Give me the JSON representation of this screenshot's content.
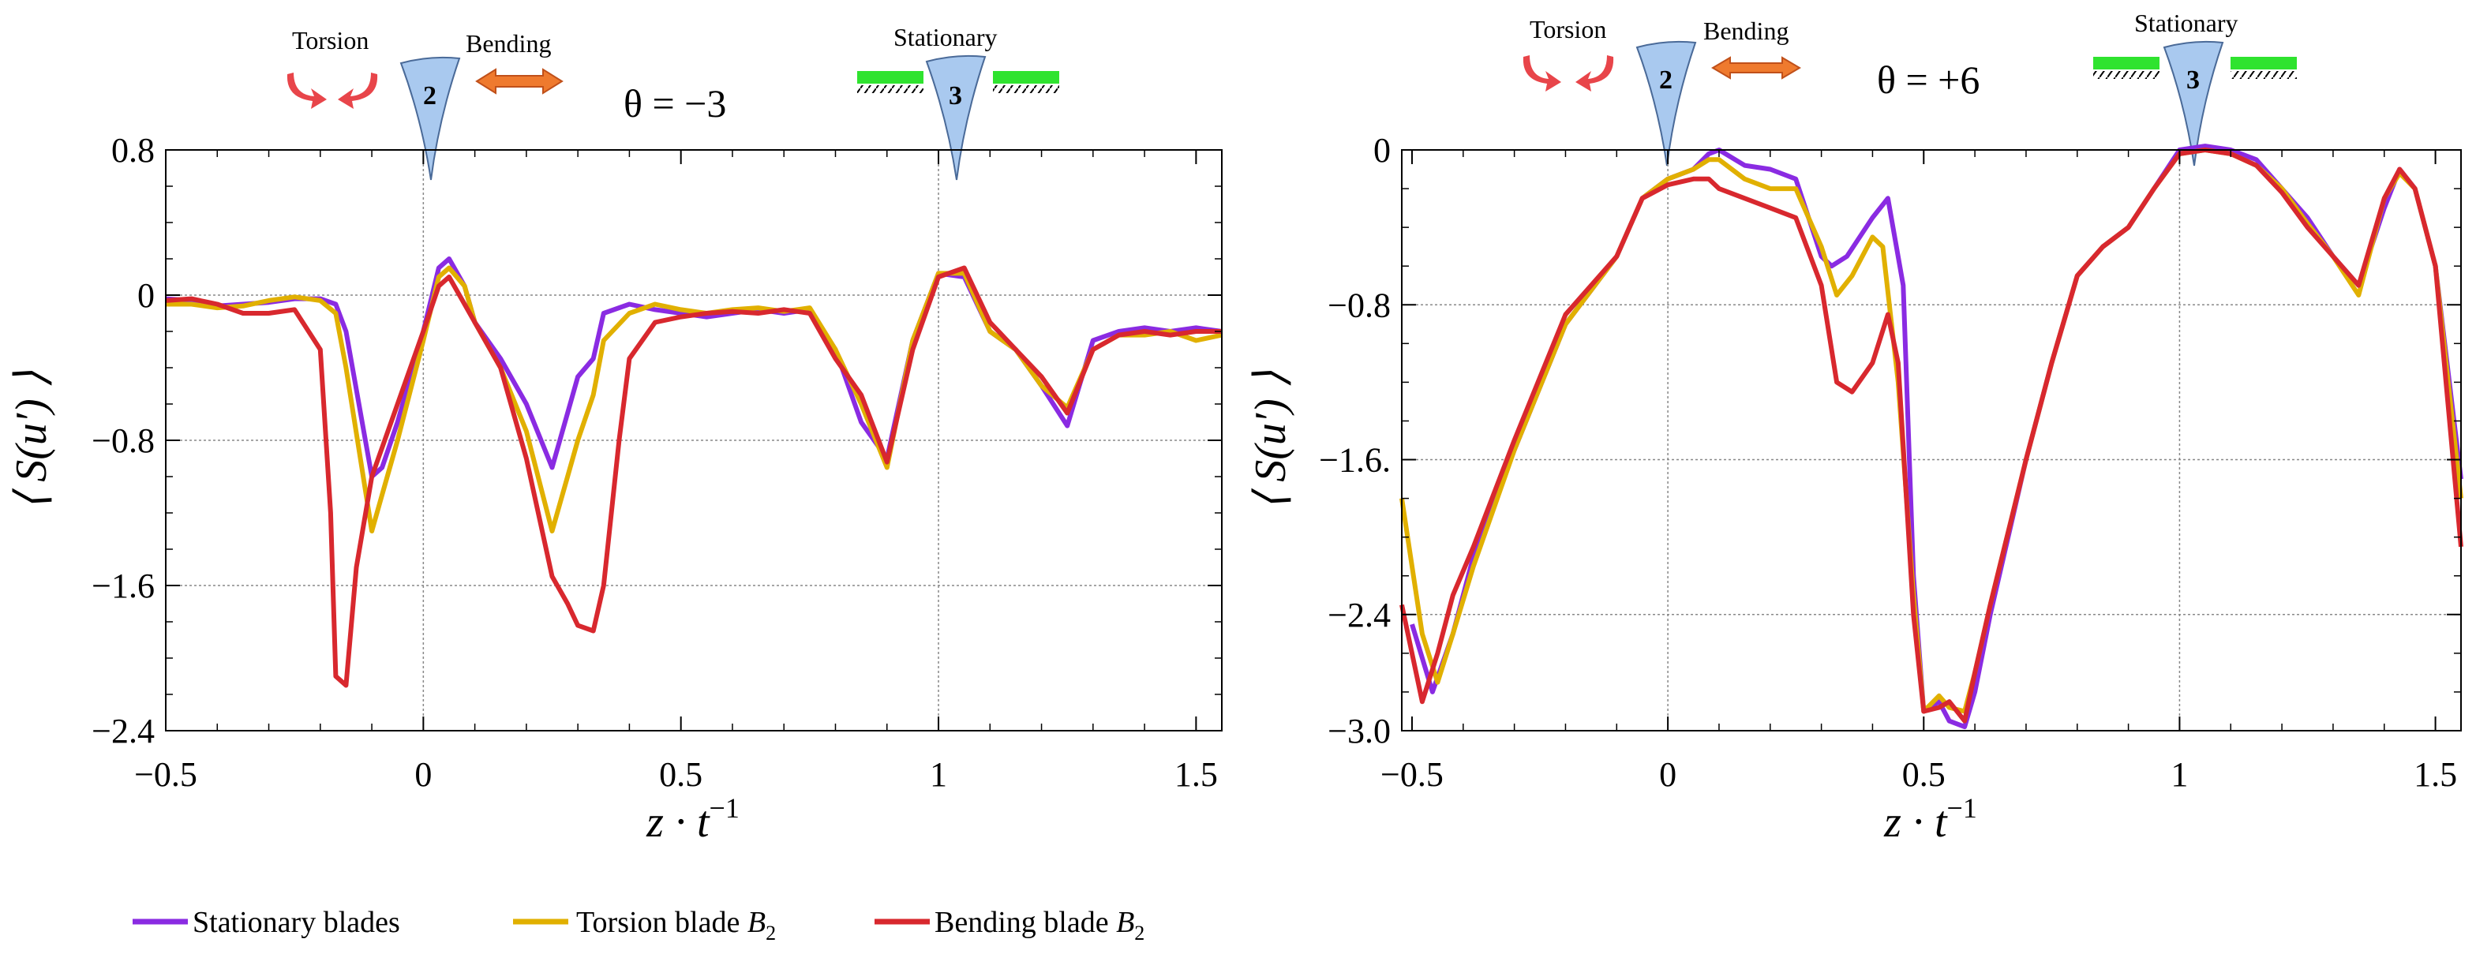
{
  "colors": {
    "stationary": "#8a2be2",
    "torsion": "#e1b000",
    "bending": "#d8282e",
    "blade_fill": "#a9c9ef",
    "arrow": "#ef7a2e",
    "torsion_arrow": "#e8454a",
    "stationary_bar": "#2fe32f"
  },
  "annotations": {
    "torsion": "Torsion",
    "bending": "Bending",
    "stationary": "Stationary",
    "blade2": "2",
    "blade3": "3"
  },
  "legend": {
    "stationary": "Stationary blades",
    "torsion_prefix": "Torsion blade ",
    "bending_prefix": "Bending blade ",
    "blade_symbol": "B",
    "blade_sub": "2"
  },
  "chart_data": [
    {
      "type": "line",
      "theta_label": "θ = −3",
      "xlabel": "z · t",
      "xlabel_exp": "−1",
      "ylabel": "⟨ S(u′) ⟩",
      "xlim": [
        -0.5,
        1.55
      ],
      "ylim": [
        -2.4,
        0.8
      ],
      "xticks": [
        -0.5,
        0,
        0.5,
        1,
        1.5
      ],
      "xtick_labels": [
        "−0.5",
        "0",
        "0.5",
        "1",
        "1.5"
      ],
      "yticks": [
        0.8,
        0,
        -0.8,
        -1.6,
        -2.4
      ],
      "ytick_labels": [
        "0.8",
        "0",
        "−0.8",
        "−1.6",
        "−2.4"
      ],
      "series": [
        {
          "name": "Stationary blades",
          "color_key": "stationary",
          "x": [
            -0.5,
            -0.45,
            -0.4,
            -0.35,
            -0.3,
            -0.25,
            -0.2,
            -0.17,
            -0.15,
            -0.1,
            -0.08,
            -0.05,
            0,
            0.03,
            0.05,
            0.08,
            0.1,
            0.15,
            0.2,
            0.25,
            0.28,
            0.3,
            0.33,
            0.35,
            0.4,
            0.45,
            0.5,
            0.55,
            0.6,
            0.65,
            0.7,
            0.75,
            0.8,
            0.85,
            0.9,
            0.95,
            1,
            1.05,
            1.1,
            1.15,
            1.2,
            1.25,
            1.3,
            1.35,
            1.4,
            1.45,
            1.5,
            1.55
          ],
          "values": [
            -0.02,
            -0.03,
            -0.06,
            -0.05,
            -0.04,
            -0.02,
            -0.02,
            -0.05,
            -0.2,
            -1.0,
            -0.95,
            -0.7,
            -0.2,
            0.15,
            0.2,
            0.05,
            -0.15,
            -0.35,
            -0.6,
            -0.95,
            -0.65,
            -0.45,
            -0.35,
            -0.1,
            -0.05,
            -0.08,
            -0.1,
            -0.12,
            -0.1,
            -0.08,
            -0.1,
            -0.08,
            -0.3,
            -0.7,
            -0.9,
            -0.25,
            0.12,
            0.1,
            -0.2,
            -0.3,
            -0.5,
            -0.72,
            -0.25,
            -0.2,
            -0.18,
            -0.2,
            -0.18,
            -0.2
          ]
        },
        {
          "name": "Torsion blade B2",
          "color_key": "torsion",
          "x": [
            -0.5,
            -0.45,
            -0.4,
            -0.35,
            -0.3,
            -0.25,
            -0.2,
            -0.17,
            -0.15,
            -0.1,
            -0.08,
            -0.05,
            0,
            0.03,
            0.05,
            0.08,
            0.1,
            0.15,
            0.2,
            0.25,
            0.28,
            0.3,
            0.33,
            0.35,
            0.4,
            0.45,
            0.5,
            0.55,
            0.6,
            0.65,
            0.7,
            0.75,
            0.8,
            0.85,
            0.9,
            0.95,
            1,
            1.05,
            1.1,
            1.15,
            1.2,
            1.25,
            1.3,
            1.35,
            1.4,
            1.45,
            1.5,
            1.55
          ],
          "values": [
            -0.05,
            -0.05,
            -0.07,
            -0.06,
            -0.03,
            -0.01,
            -0.03,
            -0.1,
            -0.4,
            -1.3,
            -1.1,
            -0.8,
            -0.25,
            0.1,
            0.15,
            0.05,
            -0.15,
            -0.4,
            -0.75,
            -1.3,
            -1.0,
            -0.8,
            -0.55,
            -0.25,
            -0.1,
            -0.05,
            -0.08,
            -0.1,
            -0.08,
            -0.07,
            -0.09,
            -0.07,
            -0.3,
            -0.6,
            -0.95,
            -0.25,
            0.12,
            0.12,
            -0.2,
            -0.3,
            -0.5,
            -0.62,
            -0.3,
            -0.22,
            -0.22,
            -0.2,
            -0.25,
            -0.22
          ]
        },
        {
          "name": "Bending blade B2",
          "color_key": "bending",
          "x": [
            -0.5,
            -0.45,
            -0.4,
            -0.35,
            -0.3,
            -0.25,
            -0.2,
            -0.18,
            -0.17,
            -0.15,
            -0.13,
            -0.1,
            -0.05,
            0,
            0.03,
            0.05,
            0.08,
            0.1,
            0.15,
            0.2,
            0.25,
            0.28,
            0.3,
            0.33,
            0.35,
            0.38,
            0.4,
            0.45,
            0.5,
            0.55,
            0.6,
            0.65,
            0.7,
            0.75,
            0.8,
            0.85,
            0.9,
            0.95,
            1,
            1.05,
            1.1,
            1.15,
            1.2,
            1.25,
            1.3,
            1.35,
            1.4,
            1.45,
            1.5,
            1.55
          ],
          "values": [
            -0.03,
            -0.02,
            -0.05,
            -0.1,
            -0.1,
            -0.08,
            -0.3,
            -1.2,
            -2.1,
            -2.15,
            -1.5,
            -1.0,
            -0.6,
            -0.2,
            0.05,
            0.1,
            -0.05,
            -0.15,
            -0.4,
            -0.9,
            -1.55,
            -1.7,
            -1.82,
            -1.85,
            -1.6,
            -0.8,
            -0.35,
            -0.15,
            -0.12,
            -0.1,
            -0.09,
            -0.1,
            -0.08,
            -0.1,
            -0.35,
            -0.55,
            -0.92,
            -0.3,
            0.1,
            0.15,
            -0.15,
            -0.3,
            -0.45,
            -0.65,
            -0.3,
            -0.22,
            -0.2,
            -0.22,
            -0.2,
            -0.2
          ]
        }
      ]
    },
    {
      "type": "line",
      "theta_label": "θ = +6",
      "xlabel": "z · t",
      "xlabel_exp": "−1",
      "ylabel": "⟨ S(u′) ⟩",
      "xlim": [
        -0.52,
        1.55
      ],
      "ylim": [
        -3.0,
        0.0
      ],
      "xticks": [
        -0.5,
        0,
        0.5,
        1,
        1.5
      ],
      "xtick_labels": [
        "−0.5",
        "0",
        "0.5",
        "1",
        "1.5"
      ],
      "yticks": [
        0,
        -0.8,
        -1.6,
        -2.4,
        -3.0
      ],
      "ytick_labels": [
        "0",
        "−0.8",
        "−1.6.",
        "−2.4",
        "−3.0"
      ],
      "series": [
        {
          "name": "Stationary blades",
          "color_key": "stationary",
          "x": [
            -0.5,
            -0.46,
            -0.42,
            -0.38,
            -0.3,
            -0.2,
            -0.1,
            -0.05,
            0,
            0.05,
            0.08,
            0.1,
            0.15,
            0.2,
            0.25,
            0.3,
            0.32,
            0.35,
            0.4,
            0.43,
            0.46,
            0.48,
            0.5,
            0.53,
            0.55,
            0.58,
            0.6,
            0.63,
            0.7,
            0.75,
            0.8,
            0.85,
            0.9,
            0.95,
            1,
            1.05,
            1.1,
            1.15,
            1.2,
            1.25,
            1.3,
            1.35,
            1.4,
            1.43,
            1.46,
            1.5,
            1.55
          ],
          "values": [
            -2.45,
            -2.8,
            -2.5,
            -2.1,
            -1.55,
            -0.9,
            -0.55,
            -0.25,
            -0.15,
            -0.1,
            -0.02,
            0.0,
            -0.08,
            -0.1,
            -0.15,
            -0.55,
            -0.6,
            -0.55,
            -0.35,
            -0.25,
            -0.7,
            -2.2,
            -2.9,
            -2.85,
            -2.95,
            -2.98,
            -2.8,
            -2.4,
            -1.6,
            -1.1,
            -0.65,
            -0.5,
            -0.4,
            -0.2,
            0.0,
            0.02,
            0.0,
            -0.05,
            -0.2,
            -0.35,
            -0.55,
            -0.7,
            -0.3,
            -0.1,
            -0.2,
            -0.6,
            -1.7
          ]
        },
        {
          "name": "Torsion blade B2",
          "color_key": "torsion",
          "x": [
            -0.52,
            -0.48,
            -0.45,
            -0.42,
            -0.38,
            -0.3,
            -0.2,
            -0.1,
            -0.05,
            0,
            0.05,
            0.08,
            0.1,
            0.15,
            0.2,
            0.25,
            0.3,
            0.33,
            0.36,
            0.4,
            0.42,
            0.45,
            0.48,
            0.5,
            0.53,
            0.55,
            0.58,
            0.6,
            0.63,
            0.7,
            0.75,
            0.8,
            0.85,
            0.9,
            0.95,
            1,
            1.05,
            1.1,
            1.15,
            1.2,
            1.25,
            1.3,
            1.35,
            1.4,
            1.43,
            1.46,
            1.5,
            1.55
          ],
          "values": [
            -1.8,
            -2.5,
            -2.75,
            -2.5,
            -2.15,
            -1.55,
            -0.9,
            -0.55,
            -0.25,
            -0.15,
            -0.1,
            -0.05,
            -0.05,
            -0.15,
            -0.2,
            -0.2,
            -0.5,
            -0.75,
            -0.65,
            -0.45,
            -0.5,
            -1.2,
            -2.3,
            -2.9,
            -2.82,
            -2.88,
            -2.9,
            -2.7,
            -2.35,
            -1.6,
            -1.1,
            -0.65,
            -0.5,
            -0.4,
            -0.2,
            -0.02,
            0.0,
            -0.02,
            -0.08,
            -0.2,
            -0.38,
            -0.55,
            -0.75,
            -0.25,
            -0.12,
            -0.2,
            -0.6,
            -1.8
          ]
        },
        {
          "name": "Bending blade B2",
          "color_key": "bending",
          "x": [
            -0.52,
            -0.48,
            -0.45,
            -0.42,
            -0.38,
            -0.3,
            -0.2,
            -0.1,
            -0.05,
            0,
            0.05,
            0.08,
            0.1,
            0.15,
            0.2,
            0.25,
            0.3,
            0.33,
            0.36,
            0.4,
            0.43,
            0.45,
            0.48,
            0.5,
            0.53,
            0.55,
            0.58,
            0.6,
            0.63,
            0.7,
            0.75,
            0.8,
            0.85,
            0.9,
            0.95,
            1,
            1.05,
            1.1,
            1.15,
            1.2,
            1.25,
            1.3,
            1.35,
            1.4,
            1.43,
            1.46,
            1.5,
            1.55
          ],
          "values": [
            -2.35,
            -2.85,
            -2.6,
            -2.3,
            -2.05,
            -1.5,
            -0.85,
            -0.55,
            -0.25,
            -0.18,
            -0.15,
            -0.15,
            -0.2,
            -0.25,
            -0.3,
            -0.35,
            -0.7,
            -1.2,
            -1.25,
            -1.1,
            -0.85,
            -1.1,
            -2.4,
            -2.9,
            -2.88,
            -2.85,
            -2.95,
            -2.7,
            -2.35,
            -1.6,
            -1.1,
            -0.65,
            -0.5,
            -0.4,
            -0.2,
            -0.02,
            0.0,
            -0.02,
            -0.08,
            -0.22,
            -0.4,
            -0.55,
            -0.7,
            -0.25,
            -0.1,
            -0.2,
            -0.6,
            -2.05
          ]
        }
      ]
    }
  ]
}
